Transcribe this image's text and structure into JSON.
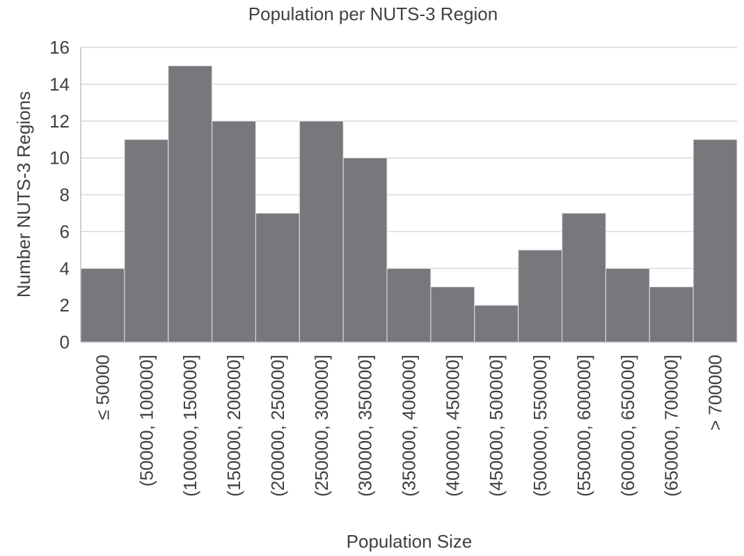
{
  "chart_data": {
    "type": "bar",
    "title": "Population per NUTS-3 Region",
    "xlabel": "Population Size",
    "ylabel": "Number NUTS-3 Regions",
    "categories": [
      "≤ 50000",
      "(50000, 100000]",
      "(100000, 150000]",
      "(150000, 200000]",
      "(200000, 250000]",
      "(250000, 300000]",
      "(300000, 350000]",
      "(350000, 400000]",
      "(400000, 450000]",
      "(450000, 500000]",
      "(500000, 550000]",
      "(550000, 600000]",
      "(600000, 650000]",
      "(650000, 700000]",
      "> 700000"
    ],
    "values": [
      4,
      11,
      15,
      12,
      7,
      12,
      10,
      4,
      3,
      2,
      5,
      7,
      4,
      3,
      11
    ],
    "ylim": [
      0,
      16
    ],
    "yticks": [
      0,
      2,
      4,
      6,
      8,
      10,
      12,
      14,
      16
    ],
    "grid": true,
    "legend": "none",
    "bar_color": "#77787c",
    "grid_color": "#d9d9d9",
    "text_color": "#404040"
  }
}
